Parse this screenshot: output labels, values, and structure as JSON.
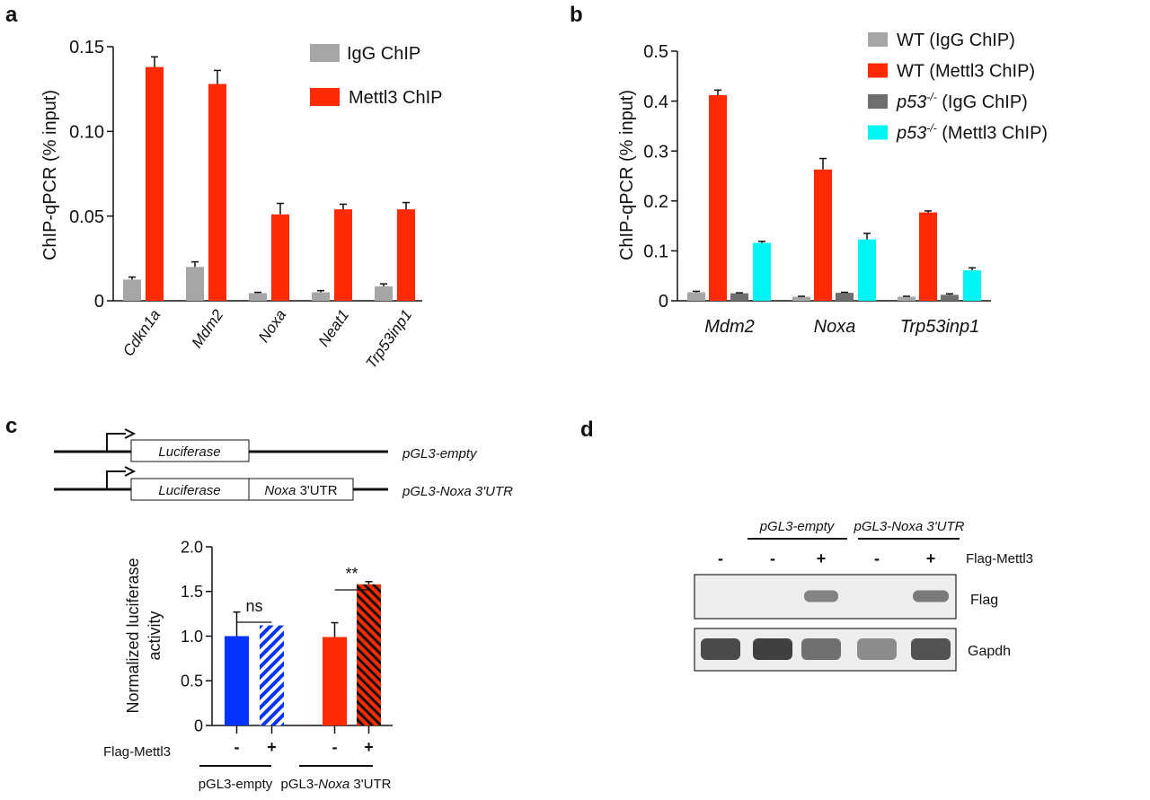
{
  "panels": {
    "a": "a",
    "b": "b",
    "c": "c",
    "d": "d"
  },
  "chart_data": [
    {
      "panel": "a",
      "type": "bar",
      "ylabel": "ChIP-qPCR (% input)",
      "ylim": [
        0,
        0.15
      ],
      "yticks": [
        0,
        0.05,
        0.1,
        0.15
      ],
      "ytick_labels": [
        "0",
        "0.05",
        "0.10",
        "0.15"
      ],
      "categories": [
        "Cdkn1a",
        "Mdm2",
        "Noxa",
        "Neat1",
        "Trp53inp1"
      ],
      "legend_position": "top-right",
      "series": [
        {
          "name": "IgG ChIP",
          "color": "#a6a6a6",
          "values": [
            0.0125,
            0.02,
            0.0045,
            0.005,
            0.0085
          ],
          "errors": [
            0.0015,
            0.003,
            0.0005,
            0.001,
            0.0015
          ]
        },
        {
          "name": "Mettl3 ChIP",
          "color": "#ff2a00",
          "values": [
            0.138,
            0.128,
            0.051,
            0.054,
            0.054
          ],
          "errors": [
            0.006,
            0.008,
            0.0065,
            0.003,
            0.004
          ]
        }
      ]
    },
    {
      "panel": "b",
      "type": "bar",
      "ylabel": "ChIP-qPCR (% input)",
      "ylim": [
        0,
        0.5
      ],
      "yticks": [
        0,
        0.1,
        0.2,
        0.3,
        0.4,
        0.5
      ],
      "ytick_labels": [
        "0",
        "0.1",
        "0.2",
        "0.3",
        "0.4",
        "0.5"
      ],
      "categories": [
        "Mdm2",
        "Noxa",
        "Trp53inp1"
      ],
      "legend_position": "top-right",
      "series": [
        {
          "name": "WT (IgG ChIP)",
          "name_prefix": "WT",
          "name_suffix": "(IgG ChIP)",
          "color": "#a6a6a6",
          "values": [
            0.017,
            0.008,
            0.008
          ],
          "errors": [
            0.002,
            0.001,
            0.001
          ]
        },
        {
          "name": "WT (Mettl3 ChIP)",
          "name_prefix": "WT",
          "name_suffix": "(Mettl3 ChIP)",
          "color": "#ff2a00",
          "values": [
            0.412,
            0.263,
            0.177
          ],
          "errors": [
            0.01,
            0.022,
            0.003
          ]
        },
        {
          "name": "p53-/- (IgG ChIP)",
          "name_prefix": "p53",
          "name_sup": "-/-",
          "name_suffix": "(IgG ChIP)",
          "color": "#6e6e6e",
          "values": [
            0.015,
            0.016,
            0.012
          ],
          "errors": [
            0.001,
            0.001,
            0.002
          ]
        },
        {
          "name": "p53-/- (Mettl3 ChIP)",
          "name_prefix": "p53",
          "name_sup": "-/-",
          "name_suffix": "(Mettl3 ChIP)",
          "color": "#00f5f5",
          "values": [
            0.116,
            0.123,
            0.061
          ],
          "errors": [
            0.003,
            0.012,
            0.005
          ]
        }
      ]
    },
    {
      "panel": "c",
      "type": "bar",
      "ylabel_lines": [
        "Normalized luciferase",
        "activity"
      ],
      "ylim": [
        0,
        2.0
      ],
      "yticks": [
        0,
        0.5,
        1.0,
        1.5,
        2.0
      ],
      "ytick_labels": [
        "0",
        "0.5",
        "1.0",
        "1.5",
        "2.0"
      ],
      "row_label": "Flag-Mettl3",
      "bars": [
        {
          "group": "pGL3-empty",
          "flag_mettl3": "-",
          "value": 1.0,
          "error": 0.27,
          "color": "#0033ff",
          "hatched": false
        },
        {
          "group": "pGL3-empty",
          "flag_mettl3": "+",
          "value": 1.12,
          "error": 0,
          "color": "#0033ff",
          "hatched": true
        },
        {
          "group": "pGL3-Noxa 3'UTR",
          "flag_mettl3": "-",
          "value": 0.99,
          "error": 0.16,
          "color": "#ff2a00",
          "hatched": false
        },
        {
          "group": "pGL3-Noxa 3'UTR",
          "flag_mettl3": "+",
          "value": 1.58,
          "error": 0.03,
          "color": "#ff2a00",
          "hatched": true
        }
      ],
      "groups": [
        {
          "label": "pGL3-empty"
        },
        {
          "label_prefix": "pGL3-",
          "label_italic": "Noxa",
          "label_suffix": " 3'UTR"
        }
      ],
      "annotations": [
        {
          "text": "ns",
          "between": [
            0,
            1
          ]
        },
        {
          "text": "**",
          "between": [
            2,
            3
          ]
        }
      ]
    }
  ],
  "constructs": [
    {
      "boxes": [
        {
          "text": "Luciferase",
          "italic": true
        }
      ],
      "label": "pGL3-empty"
    },
    {
      "boxes": [
        {
          "text": "Luciferase",
          "italic": true
        },
        {
          "text_italic": "Noxa",
          "text": " 3'UTR"
        }
      ],
      "label": "pGL3-Noxa 3'UTR"
    }
  ],
  "blot": {
    "groups": [
      "pGL3-empty",
      "pGL3-Noxa 3'UTR"
    ],
    "condition_label": "Flag-Mettl3",
    "lanes": [
      "-",
      "-",
      "+",
      "-",
      "+"
    ],
    "rows": [
      {
        "label": "Flag",
        "band_intensity": [
          0,
          0,
          0.55,
          0,
          0.6
        ]
      },
      {
        "label": "Gapdh",
        "band_intensity": [
          0.85,
          0.9,
          0.65,
          0.5,
          0.8
        ]
      }
    ]
  }
}
